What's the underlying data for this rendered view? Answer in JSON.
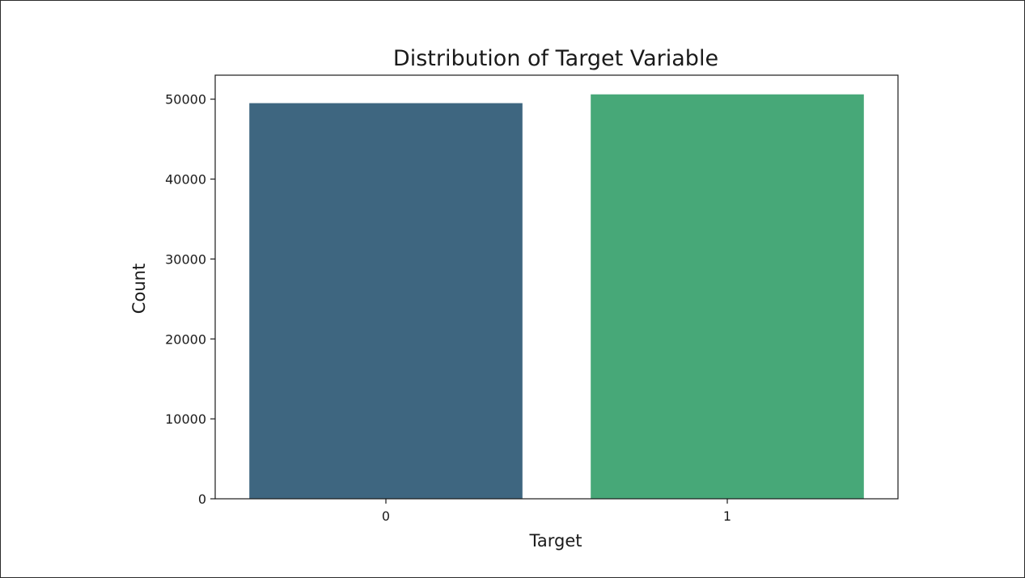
{
  "chart_data": {
    "type": "bar",
    "title": "Distribution of Target Variable",
    "xlabel": "Target",
    "ylabel": "Count",
    "categories": [
      "0",
      "1"
    ],
    "values": [
      49500,
      50600
    ],
    "ylim": [
      0,
      53000
    ],
    "yticks": [
      0,
      10000,
      20000,
      30000,
      40000,
      50000
    ],
    "colors": [
      "#3e6680",
      "#47a878"
    ],
    "grid": false,
    "legend": "none"
  }
}
